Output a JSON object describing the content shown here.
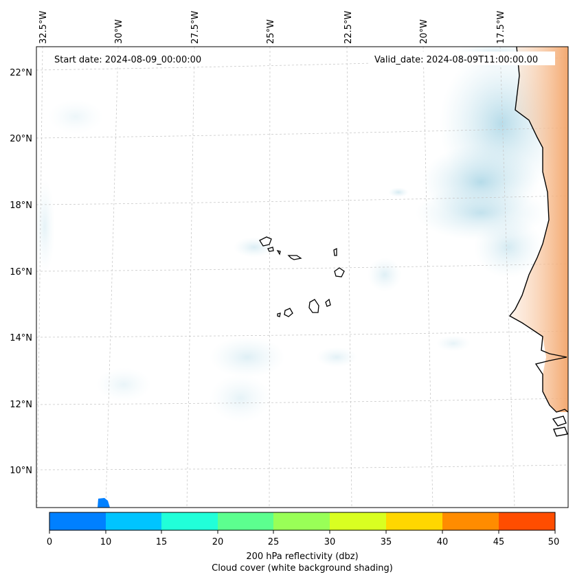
{
  "header": {
    "start_label": "Start date: 2024-08-09_00:00:00",
    "valid_label": "Valid_date: 2024-08-09T11:00:00.00"
  },
  "axes": {
    "lon_labels": [
      "32.5°W",
      "30°W",
      "27.5°W",
      "25°W",
      "22.5°W",
      "20°W",
      "17.5°W"
    ],
    "lat_labels": [
      "22°N",
      "20°N",
      "18°N",
      "16°N",
      "14°N",
      "12°N",
      "10°N"
    ]
  },
  "colorbar": {
    "ticks": [
      "0",
      "10",
      "15",
      "20",
      "25",
      "30",
      "35",
      "40",
      "45",
      "50"
    ],
    "colors": [
      "#0080ff",
      "#00c4ff",
      "#21ffd9",
      "#5cff8f",
      "#99ff57",
      "#d9ff21",
      "#ffd700",
      "#ff8c00",
      "#ff4d00"
    ],
    "label_line1": "200 hPa reflectivity (dbz)",
    "label_line2": "Cloud cover (white background shading)"
  },
  "colors": {
    "cloud": "#add8e6",
    "land_warm": "#f4a460"
  }
}
